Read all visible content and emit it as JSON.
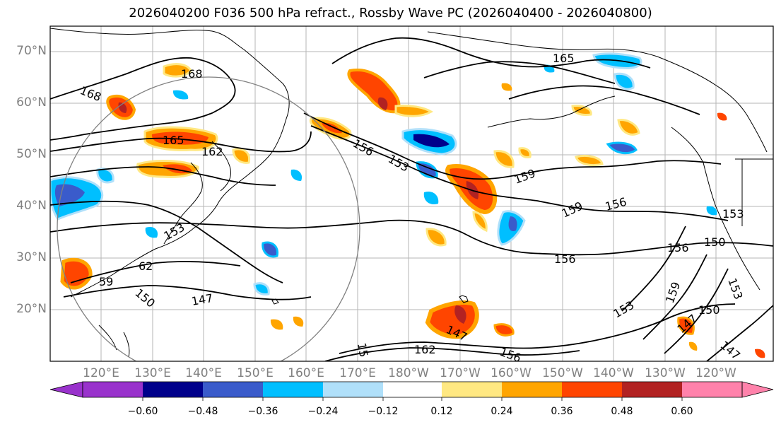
{
  "title": "2026040200 F036 500 hPa refract., Rossby Wave PC (2026040400 - 2026040800)",
  "lat_labels": [
    "70°N",
    "60°N",
    "50°N",
    "40°N",
    "30°N",
    "20°N"
  ],
  "lon_labels": [
    "120°E",
    "130°E",
    "140°E",
    "150°E",
    "160°E",
    "170°E",
    "180°W",
    "170°W",
    "160°W",
    "150°W",
    "140°W",
    "130°W",
    "120°W"
  ],
  "colorbar": {
    "ticks": [
      "−0.60",
      "−0.48",
      "−0.36",
      "−0.24",
      "−0.12",
      "0.12",
      "0.24",
      "0.36",
      "0.48",
      "0.60"
    ],
    "colors": [
      "#9932CC",
      "#00008B",
      "#3A5BCB",
      "#00BFFF",
      "#B0E0FA",
      "#FFFFFF",
      "#FFE882",
      "#FFA500",
      "#FF4500",
      "#B22222",
      "#FF82AB"
    ]
  },
  "contour_labels": [
    "168",
    "168",
    "165",
    "162",
    "165",
    "156",
    "153",
    "159",
    "159",
    "156",
    "156",
    "150",
    "156",
    "62",
    "59",
    "150",
    "147",
    "147",
    "153",
    "159",
    "150",
    "147",
    "147",
    "162",
    "156",
    "15",
    "153",
    "153",
    "153"
  ],
  "contour_color": "#000000",
  "circle_color": "#808080"
}
